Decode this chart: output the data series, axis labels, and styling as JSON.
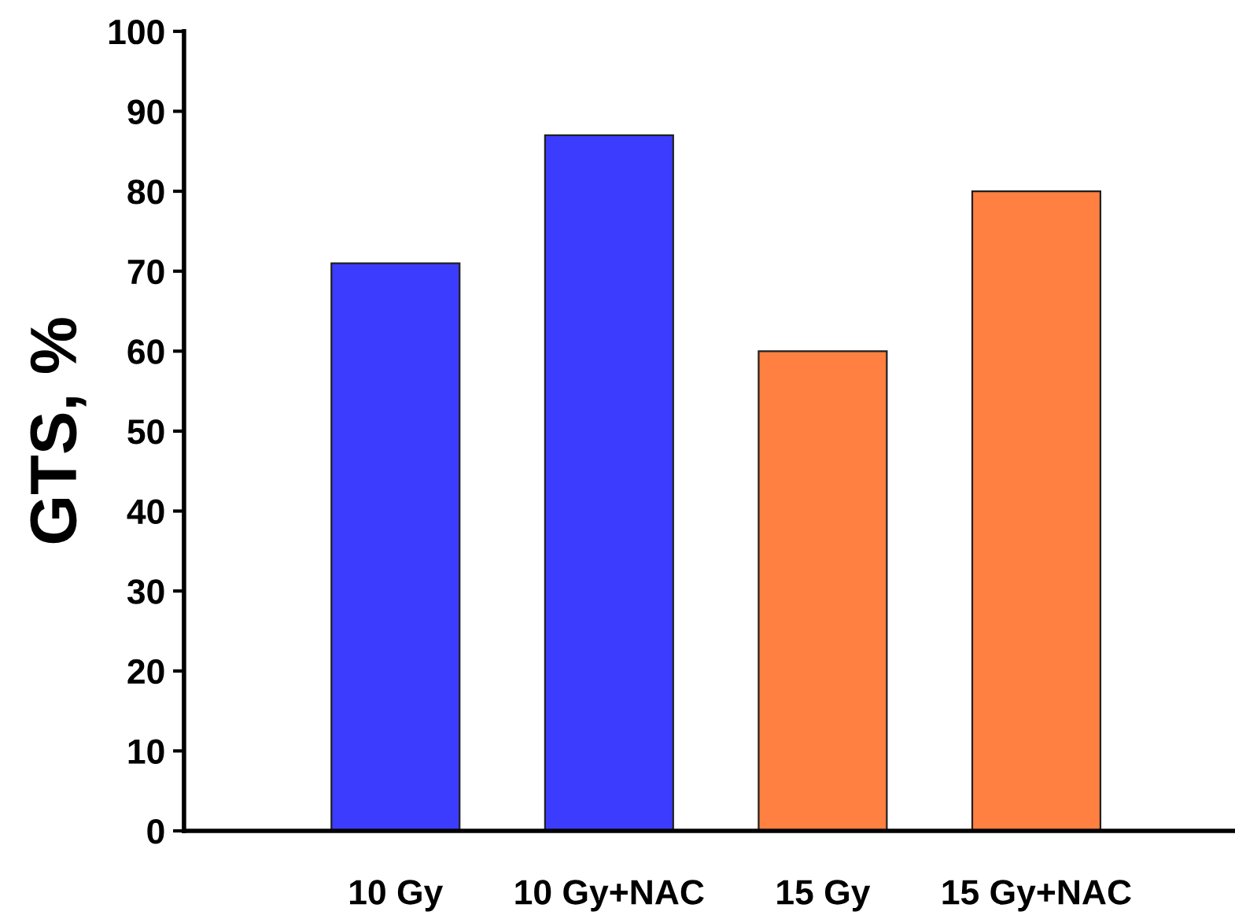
{
  "chart_data": {
    "type": "bar",
    "ylabel": "GTS, %",
    "categories": [
      "10 Gy",
      "10 Gy+NAC",
      "15 Gy",
      "15 Gy+NAC"
    ],
    "values": [
      71,
      87,
      60,
      80
    ],
    "colors": [
      "#3c3cff",
      "#3c3cff",
      "#ff8040",
      "#ff8040"
    ],
    "ylim": [
      0,
      100
    ],
    "yticks": [
      0,
      10,
      20,
      30,
      40,
      50,
      60,
      70,
      80,
      90,
      100
    ],
    "grid": false,
    "legend": false
  }
}
